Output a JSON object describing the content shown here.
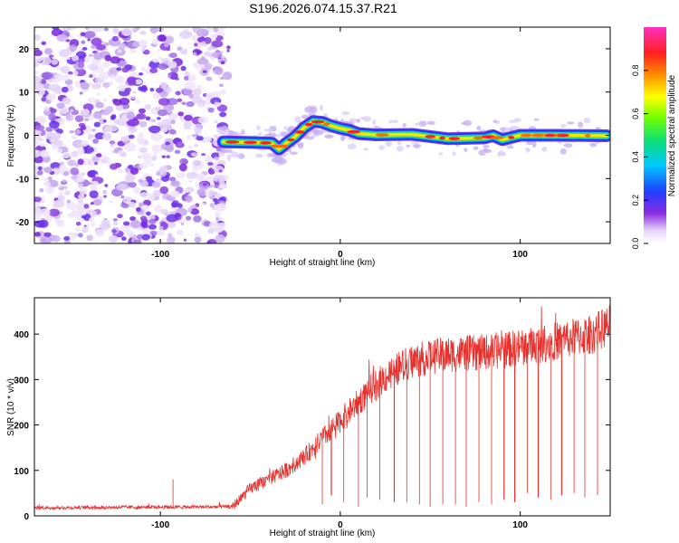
{
  "figure": {
    "title": "S196.2026.074.15.37.R21"
  },
  "colors": {
    "snr_line": "#e8302c",
    "axis": "#000000"
  },
  "chart_data": [
    {
      "type": "heatmap",
      "title": "S196.2026.074.15.37.R21",
      "xlabel": "Height of straight line (km)",
      "ylabel": "Frequency (Hz)",
      "xlim": [
        -170,
        150
      ],
      "ylim": [
        -25,
        25
      ],
      "xticks": [
        -100,
        0,
        100
      ],
      "xtick_labels": [
        "-100",
        "0",
        "100"
      ],
      "yticks": [
        -20,
        -10,
        0,
        10,
        20
      ],
      "ytick_labels": [
        "-20",
        "-10",
        "0",
        "10",
        "20"
      ],
      "colorbar": {
        "label": "Normalized spectral amplitude",
        "range": [
          0,
          1
        ],
        "ticks": [
          0.0,
          0.2,
          0.4,
          0.6,
          0.8
        ],
        "tick_labels": [
          "0.0",
          "0.2",
          "0.4",
          "0.6",
          "0.8"
        ],
        "colormap": "white-purple-blue-cyan-green-yellow-orange-red-magenta"
      },
      "noise_region": {
        "x_range": [
          -170,
          -65
        ],
        "frequency_range": [
          -25,
          25
        ],
        "amplitude": "low (0.05-0.2)"
      },
      "ridge": {
        "description": "Doppler frequency ridge",
        "x": [
          -65,
          -55,
          -45,
          -38,
          -34,
          -30,
          -25,
          -20,
          -15,
          -10,
          -5,
          0,
          5,
          10,
          20,
          40,
          60,
          80,
          85,
          90,
          100,
          120,
          148
        ],
        "frequency": [
          -1.5,
          -1.6,
          -1.7,
          -1.8,
          -3.2,
          -1.8,
          -0.3,
          1.8,
          3.2,
          3.0,
          2.2,
          1.6,
          1.2,
          0.4,
          0.1,
          0.2,
          -0.8,
          -0.6,
          -0.1,
          -1.0,
          0.0,
          0.0,
          -0.1
        ]
      }
    },
    {
      "type": "line",
      "xlabel": "Height of straight line (km)",
      "ylabel": "SNR (10 * v/v)",
      "xlim": [
        -170,
        150
      ],
      "ylim": [
        0,
        480
      ],
      "xticks": [
        -100,
        0,
        100
      ],
      "xtick_labels": [
        "-100",
        "0",
        "100"
      ],
      "yticks": [
        0,
        100,
        200,
        300,
        400
      ],
      "ytick_labels": [
        "0",
        "100",
        "200",
        "300",
        "400"
      ],
      "series": [
        {
          "name": "SNR",
          "color": "#e8302c",
          "envelope_x": [
            -170,
            -60,
            -55,
            -50,
            -40,
            -30,
            -20,
            -10,
            0,
            10,
            20,
            30,
            40,
            50,
            60,
            80,
            100,
            120,
            140,
            150
          ],
          "envelope_y": [
            18,
            20,
            40,
            60,
            80,
            100,
            130,
            170,
            210,
            250,
            290,
            320,
            340,
            350,
            355,
            360,
            370,
            385,
            400,
            420
          ],
          "dropouts_x": [
            -93,
            -55,
            -10,
            -5,
            2,
            10,
            15,
            22,
            30,
            37,
            44,
            50,
            57,
            64,
            70,
            77,
            84,
            91,
            97,
            104,
            110,
            117,
            123,
            130,
            136,
            143
          ],
          "dropouts_y": [
            80,
            40,
            25,
            45,
            30,
            20,
            40,
            35,
            30,
            30,
            25,
            20,
            25,
            25,
            20,
            30,
            25,
            35,
            30,
            50,
            40,
            35,
            45,
            50,
            40,
            45
          ]
        }
      ]
    }
  ]
}
